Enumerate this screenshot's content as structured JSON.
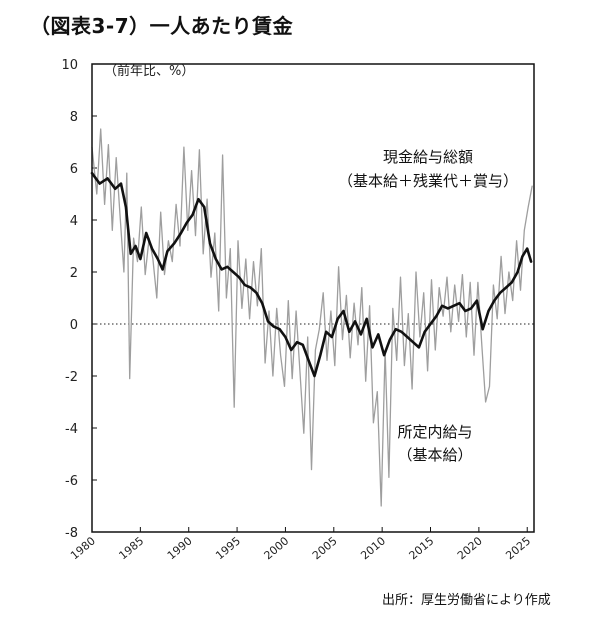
{
  "title": "（図表3-7）一人あたり賃金",
  "source": "出所：厚生労働省により作成",
  "chart_data": {
    "type": "line",
    "y_unit_label": "（前年比、%）",
    "xlim": [
      1980,
      2025.7
    ],
    "ylim": [
      -8,
      10
    ],
    "x_ticks": [
      1980,
      1985,
      1990,
      1995,
      2000,
      2005,
      2010,
      2015,
      2020,
      2025
    ],
    "y_ticks": [
      10,
      8,
      6,
      4,
      2,
      0,
      -2,
      -4,
      -6,
      -8
    ],
    "grid": false,
    "zero_line": "dotted",
    "series": [
      {
        "name": "現金給与総額（基本給＋残業代＋賞与）",
        "color": "#9e9e9e",
        "style": "thin-volatile",
        "x": [
          1980.0,
          1980.5,
          1980.9,
          1981.3,
          1981.7,
          1982.1,
          1982.5,
          1982.9,
          1983.3,
          1983.6,
          1983.9,
          1984.3,
          1984.7,
          1985.1,
          1985.5,
          1985.9,
          1986.3,
          1986.7,
          1987.1,
          1987.5,
          1987.9,
          1988.3,
          1988.7,
          1989.1,
          1989.5,
          1989.9,
          1990.3,
          1990.7,
          1991.1,
          1991.5,
          1991.9,
          1992.3,
          1992.7,
          1993.1,
          1993.5,
          1993.9,
          1994.3,
          1994.7,
          1995.1,
          1995.5,
          1995.9,
          1996.3,
          1996.7,
          1997.1,
          1997.5,
          1997.9,
          1998.3,
          1998.7,
          1999.1,
          1999.5,
          1999.9,
          2000.3,
          2000.7,
          2001.1,
          2001.5,
          2001.9,
          2002.3,
          2002.7,
          2003.1,
          2003.5,
          2003.9,
          2004.3,
          2004.7,
          2005.1,
          2005.5,
          2005.9,
          2006.3,
          2006.7,
          2007.1,
          2007.5,
          2007.9,
          2008.3,
          2008.7,
          2009.1,
          2009.5,
          2009.9,
          2010.3,
          2010.7,
          2011.1,
          2011.5,
          2011.9,
          2012.3,
          2012.7,
          2013.1,
          2013.5,
          2013.9,
          2014.3,
          2014.7,
          2015.1,
          2015.5,
          2015.9,
          2016.3,
          2016.7,
          2017.1,
          2017.5,
          2017.9,
          2018.3,
          2018.7,
          2019.1,
          2019.5,
          2019.9,
          2020.3,
          2020.7,
          2021.1,
          2021.5,
          2021.9,
          2022.3,
          2022.7,
          2023.1,
          2023.5,
          2023.9,
          2024.3,
          2024.7,
          2025.1,
          2025.5
        ],
        "values": [
          6.8,
          5.0,
          7.5,
          4.6,
          6.9,
          3.6,
          6.4,
          4.2,
          2.0,
          5.8,
          -2.1,
          3.3,
          2.4,
          4.5,
          1.9,
          3.3,
          2.5,
          1.0,
          4.3,
          1.9,
          3.2,
          2.4,
          4.6,
          3.0,
          6.8,
          3.6,
          5.9,
          3.4,
          6.7,
          2.7,
          4.8,
          1.8,
          3.5,
          0.5,
          6.5,
          1.0,
          2.9,
          -3.2,
          3.2,
          0.6,
          2.5,
          0.2,
          2.4,
          0.7,
          2.9,
          -1.5,
          0.5,
          -2.0,
          0.6,
          -1.2,
          -2.4,
          0.9,
          -2.1,
          0.5,
          -1.8,
          -4.2,
          -0.5,
          -5.6,
          -1.0,
          -0.2,
          1.2,
          -1.4,
          0.5,
          -1.6,
          2.2,
          -0.6,
          1.1,
          -1.3,
          0.8,
          -0.8,
          1.4,
          -2.2,
          0.7,
          -3.8,
          -2.6,
          -7.0,
          -1.0,
          -5.9,
          0.6,
          -1.4,
          1.8,
          -1.6,
          0.4,
          -2.5,
          2.0,
          -0.5,
          1.2,
          -1.8,
          1.7,
          -1.0,
          1.4,
          0.3,
          1.8,
          -0.3,
          1.5,
          0.1,
          1.9,
          -0.5,
          1.6,
          -1.2,
          1.6,
          -0.8,
          -3.0,
          -2.4,
          1.5,
          0.2,
          2.6,
          0.4,
          2.0,
          0.9,
          3.2,
          1.3,
          3.6,
          4.5,
          5.3
        ]
      },
      {
        "name": "所定内給与（基本給）",
        "color": "#111111",
        "style": "thick",
        "x": [
          1980.0,
          1980.8,
          1981.6,
          1982.4,
          1983.0,
          1983.5,
          1984.0,
          1984.5,
          1985.0,
          1985.6,
          1986.2,
          1986.8,
          1987.3,
          1987.8,
          1988.5,
          1989.2,
          1989.8,
          1990.4,
          1991.0,
          1991.6,
          1992.2,
          1992.8,
          1993.4,
          1994.0,
          1994.6,
          1995.2,
          1995.8,
          1996.4,
          1997.0,
          1997.6,
          1998.2,
          1998.8,
          1999.4,
          2000.0,
          2000.6,
          2001.2,
          2001.8,
          2002.4,
          2003.0,
          2003.6,
          2004.2,
          2004.8,
          2005.4,
          2006.0,
          2006.6,
          2007.2,
          2007.8,
          2008.4,
          2009.0,
          2009.6,
          2010.2,
          2010.8,
          2011.4,
          2012.0,
          2012.6,
          2013.2,
          2013.8,
          2014.4,
          2015.0,
          2015.6,
          2016.2,
          2016.8,
          2017.4,
          2018.0,
          2018.6,
          2019.2,
          2019.8,
          2020.4,
          2021.0,
          2021.6,
          2022.2,
          2022.8,
          2023.4,
          2024.0,
          2024.5,
          2025.0,
          2025.4
        ],
        "values": [
          5.8,
          5.4,
          5.6,
          5.2,
          5.4,
          4.5,
          2.7,
          3.0,
          2.5,
          3.5,
          2.9,
          2.5,
          2.1,
          2.8,
          3.1,
          3.5,
          3.9,
          4.2,
          4.8,
          4.5,
          3.1,
          2.5,
          2.1,
          2.2,
          2.0,
          1.8,
          1.5,
          1.4,
          1.2,
          0.8,
          0.1,
          -0.1,
          -0.2,
          -0.5,
          -1.0,
          -0.7,
          -0.8,
          -1.4,
          -2.0,
          -1.2,
          -0.3,
          -0.5,
          0.2,
          0.5,
          -0.3,
          0.1,
          -0.4,
          0.2,
          -0.9,
          -0.4,
          -1.2,
          -0.6,
          -0.2,
          -0.3,
          -0.5,
          -0.7,
          -0.9,
          -0.3,
          0.0,
          0.3,
          0.7,
          0.6,
          0.7,
          0.8,
          0.5,
          0.6,
          0.9,
          -0.2,
          0.5,
          0.9,
          1.2,
          1.4,
          1.6,
          2.0,
          2.6,
          2.9,
          2.4
        ]
      }
    ],
    "annotations": [
      {
        "lines": [
          "現金給与総額",
          "（基本給＋残業代＋賞与）"
        ]
      },
      {
        "lines": [
          "所定内給与",
          "（基本給）"
        ]
      }
    ]
  }
}
